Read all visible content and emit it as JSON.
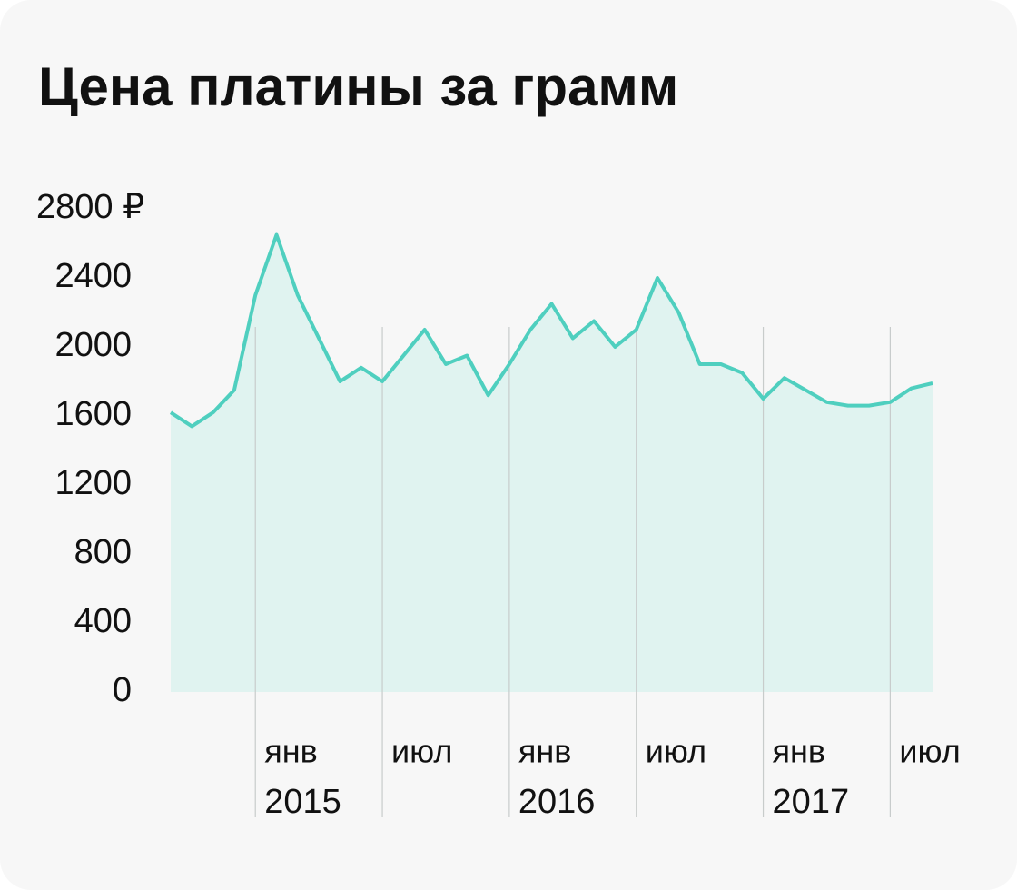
{
  "chart_data": {
    "type": "area",
    "title": "Цена платины за грамм",
    "x": [
      "2014-09",
      "2014-10",
      "2014-11",
      "2014-12",
      "2015-01",
      "2015-02",
      "2015-03",
      "2015-04",
      "2015-05",
      "2015-06",
      "2015-07",
      "2015-08",
      "2015-09",
      "2015-10",
      "2015-11",
      "2015-12",
      "2016-01",
      "2016-02",
      "2016-03",
      "2016-04",
      "2016-05",
      "2016-06",
      "2016-07",
      "2016-08",
      "2016-09",
      "2016-10",
      "2016-11",
      "2016-12",
      "2017-01",
      "2017-02",
      "2017-03",
      "2017-04",
      "2017-05",
      "2017-06",
      "2017-07",
      "2017-08",
      "2017-09"
    ],
    "values": [
      1620,
      1540,
      1620,
      1750,
      2300,
      2650,
      2300,
      2050,
      1800,
      1880,
      1800,
      1950,
      2100,
      1900,
      1950,
      1720,
      1900,
      2100,
      2250,
      2050,
      2150,
      2000,
      2100,
      2400,
      2200,
      1900,
      1900,
      1850,
      1700,
      1820,
      1750,
      1680,
      1660,
      1660,
      1680,
      1760,
      1790
    ],
    "color": "#4fcfbf",
    "fill_color": "#e0f3f0",
    "xlim": [
      "2014-09",
      "2017-09"
    ],
    "xticks": [
      {
        "value": "2015-01",
        "label": "янв"
      },
      {
        "value": "2015-07",
        "label": "июл"
      },
      {
        "value": "2016-01",
        "label": "янв"
      },
      {
        "value": "2016-07",
        "label": "июл"
      },
      {
        "value": "2017-01",
        "label": "янв"
      },
      {
        "value": "2017-07",
        "label": "июл"
      }
    ],
    "year_ticks": [
      {
        "value": "2015-01",
        "label": "2015"
      },
      {
        "value": "2016-01",
        "label": "2016"
      },
      {
        "value": "2017-01",
        "label": "2017"
      }
    ],
    "ylim": [
      0,
      2800
    ],
    "yticks": [
      0,
      400,
      800,
      1200,
      1600,
      2000,
      2400,
      {
        "value": 2800,
        "label": "2800 ₽"
      }
    ]
  }
}
